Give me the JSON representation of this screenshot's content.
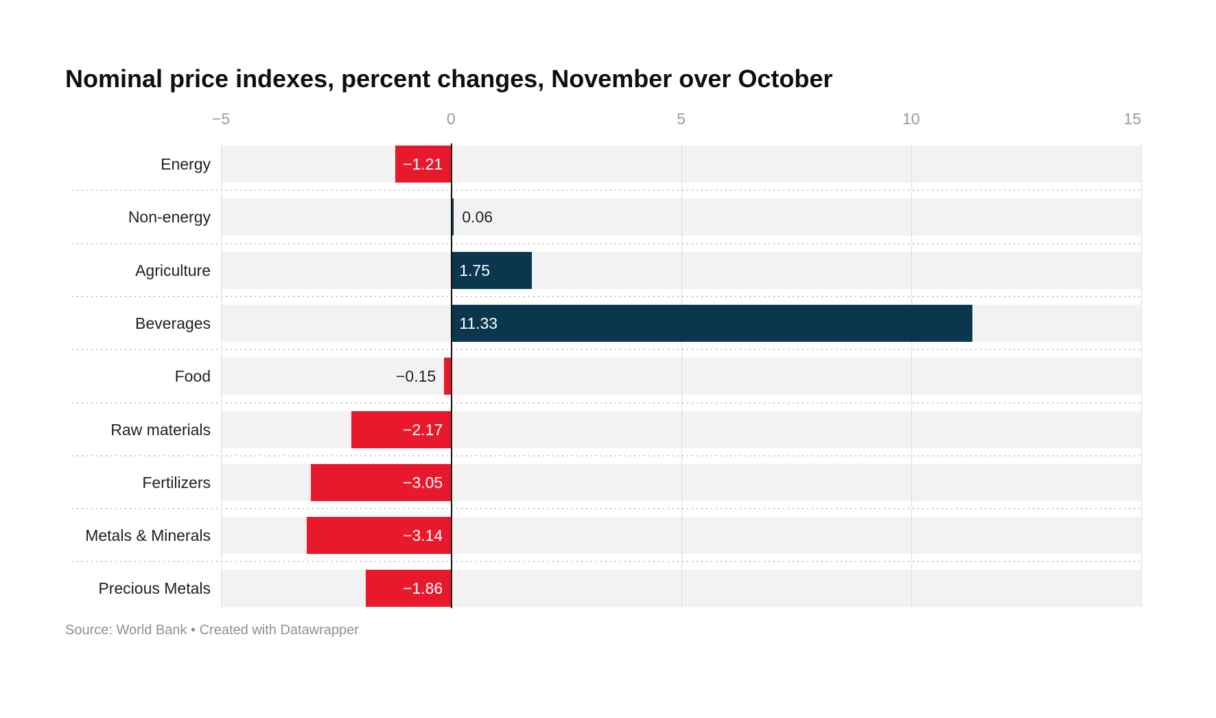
{
  "title": "Nominal price indexes, percent changes, November over October",
  "footer": "Source: World Bank • Created with Datawrapper",
  "chart_data": {
    "type": "bar",
    "orientation": "horizontal",
    "title": "Nominal price indexes, percent changes, November over October",
    "source": "Source: World Bank • Created with Datawrapper",
    "categories": [
      "Energy",
      "Non-energy",
      "Agriculture",
      "Beverages",
      "Food",
      "Raw materials",
      "Fertilizers",
      "Metals & Minerals",
      "Precious Metals"
    ],
    "values": [
      -1.21,
      0.06,
      1.75,
      11.33,
      -0.15,
      -2.17,
      -3.05,
      -3.14,
      -1.86
    ],
    "value_labels": [
      "−1.21",
      "0.06",
      "1.75",
      "11.33",
      "−0.15",
      "−2.17",
      "−3.05",
      "−3.14",
      "−1.86"
    ],
    "x_ticks": [
      {
        "value": -5,
        "label": "−5"
      },
      {
        "value": 0,
        "label": "0"
      },
      {
        "value": 5,
        "label": "5"
      },
      {
        "value": 10,
        "label": "10"
      },
      {
        "value": 15,
        "label": "15"
      }
    ],
    "xlim": [
      -5,
      15
    ],
    "grid": "vertical",
    "legend": "none",
    "row_separators": "dotted",
    "colors": {
      "positive": "#0a374d",
      "negative": "#e9192d",
      "row_background": "#f2f2f2",
      "gridline": "#dcdcdc",
      "zero_axis": "#121212",
      "tick_label": "#9a9a9a",
      "category_label": "#202020",
      "value_inside": "#ffffff",
      "value_outside": "#1d1d1d"
    }
  }
}
